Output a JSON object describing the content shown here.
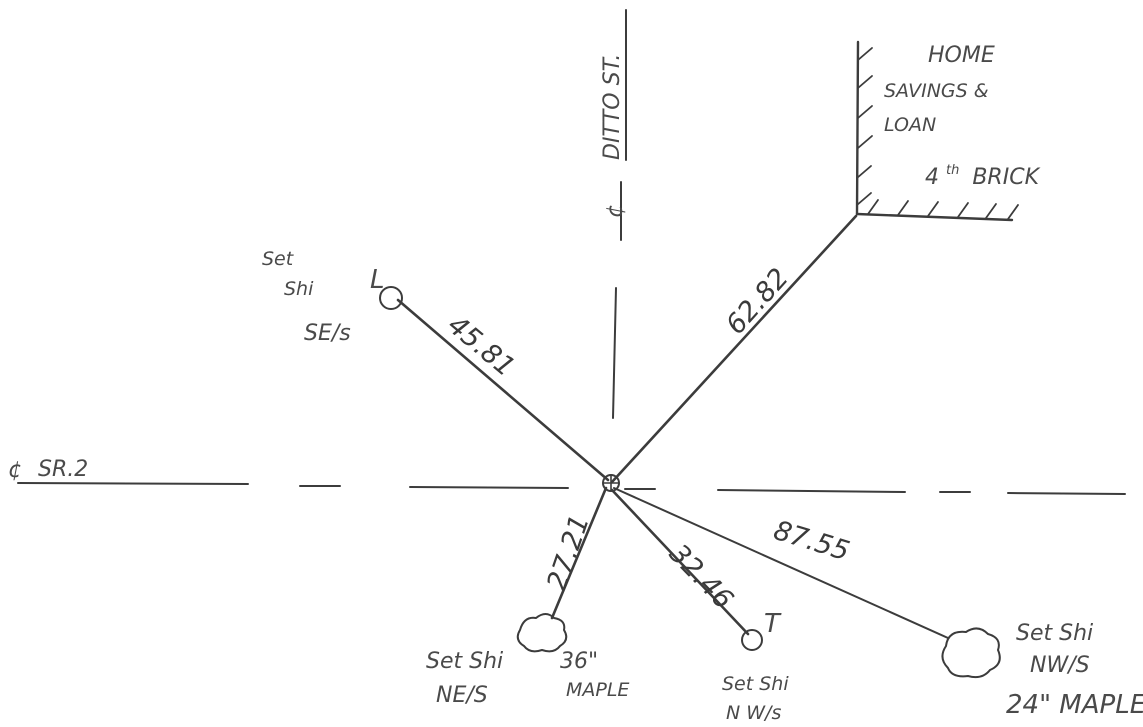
{
  "streets": {
    "ditto": "DITTO ST.",
    "sr2": "SR.2",
    "cl_ditto": "¢",
    "cl_sr2": "¢"
  },
  "building": {
    "line1": "HOME",
    "line2": "SAVINGS  &",
    "line3": "LOAN",
    "line4_num": "4",
    "line4_sup": "th",
    "line4_rest": "BRICK"
  },
  "ties": [
    {
      "id": "building-corner",
      "distance": "62.82"
    },
    {
      "id": "spike-se",
      "distance": "45.81",
      "label1": "Set",
      "label2": "Shi",
      "label3": "SE/s",
      "marker": "L"
    },
    {
      "id": "maple-36",
      "distance": "27.21",
      "label1": "Set Shi",
      "label2": "NE/S",
      "tree1": "36\"",
      "tree2": "MAPLE"
    },
    {
      "id": "spike-nw",
      "distance": "32.46",
      "label1": "Set Shi",
      "label2": "N W/s",
      "marker": "T"
    },
    {
      "id": "maple-24",
      "distance": "87.55",
      "label1": "Set Shi",
      "label2": "NW/S",
      "tree": "24\" MAPLE"
    }
  ],
  "colors": {
    "ink": "#3c3c3c",
    "pencil": "#4a4a4a",
    "paper": "#ffffff"
  }
}
